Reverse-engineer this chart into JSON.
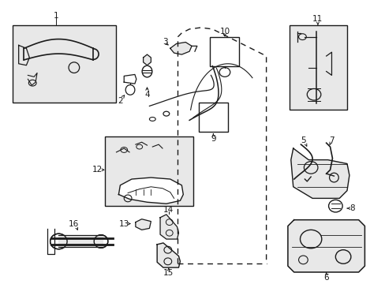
{
  "bg_color": "#ffffff",
  "fig_width": 4.89,
  "fig_height": 3.6,
  "dpi": 100,
  "dark": "#1a1a1a",
  "gray_fill": "#e8e8e8",
  "label_fs": 7.5
}
